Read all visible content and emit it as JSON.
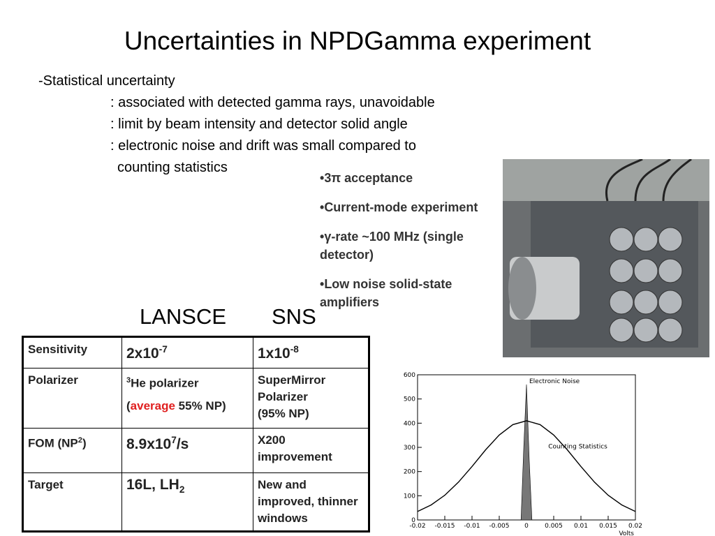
{
  "title": "Uncertainties in NPDGamma experiment",
  "statistical": {
    "heading": "-Statistical uncertainty",
    "items": [
      ": associated with detected gamma rays, unavoidable",
      ": limit by beam intensity and detector solid angle",
      ": electronic noise and drift was small compared to",
      "counting statistics"
    ]
  },
  "features": [
    "3π acceptance",
    "Current-mode experiment",
    "γ-rate ~100 MHz (single detector)",
    "Low noise solid-state amplifiers"
  ],
  "columns": [
    "LANSCE",
    "SNS"
  ],
  "table": {
    "rows": [
      [
        [
          [
            {
              "text": "Sensitivity"
            }
          ]
        ],
        [
          [
            {
              "text": "2x10"
            },
            {
              "text": "-7",
              "style": "sup"
            }
          ]
        ],
        [
          [
            {
              "text": "1x10"
            },
            {
              "text": "-8",
              "style": "sup"
            }
          ]
        ]
      ],
      [
        [
          [
            {
              "text": "Polarizer"
            }
          ]
        ],
        [
          [
            {
              "text": "3",
              "style": "sup"
            },
            {
              "text": "He polarizer"
            }
          ],
          [
            {
              "text": "("
            },
            {
              "text": "average",
              "style": "red"
            },
            {
              "text": " 55% NP)"
            }
          ]
        ],
        [
          [
            {
              "text": "SuperMirror"
            }
          ],
          [
            {
              "text": "Polarizer"
            }
          ],
          [
            {
              "text": "(95% NP)"
            }
          ]
        ]
      ],
      [
        [
          [
            {
              "text": "FOM (NP"
            },
            {
              "text": "2",
              "style": "sup"
            },
            {
              "text": ")"
            }
          ]
        ],
        [
          [
            {
              "text": "8.9x10"
            },
            {
              "text": "7",
              "style": "sup"
            },
            {
              "text": "/s"
            }
          ]
        ],
        [
          [
            {
              "text": "X200"
            }
          ],
          [
            {
              "text": "improvement"
            }
          ]
        ]
      ],
      [
        [
          [
            {
              "text": "Target"
            }
          ]
        ],
        [
          [
            {
              "text": "16L, LH"
            },
            {
              "text": "2",
              "style": "sub"
            }
          ]
        ],
        [
          [
            {
              "text": "New and"
            }
          ],
          [
            {
              "text": "improved, thinner"
            }
          ],
          [
            {
              "text": "windows"
            }
          ]
        ]
      ]
    ]
  },
  "plot": {
    "type": "line",
    "xlabel": "Volts",
    "xlim": [
      -0.02,
      0.02
    ],
    "ylim": [
      0,
      600
    ],
    "xticks": [
      -0.02,
      -0.015,
      -0.01,
      -0.005,
      0,
      0.005,
      0.01,
      0.015,
      0.02
    ],
    "yticks": [
      0,
      100,
      200,
      300,
      400,
      500,
      600
    ],
    "series": [
      {
        "name": "Electronic Noise",
        "color": "#777777",
        "fill": true,
        "x": [
          -0.001,
          -0.0005,
          0,
          0.0005,
          0.001
        ],
        "values": [
          0,
          300,
          560,
          250,
          0
        ]
      },
      {
        "name": "Counting Statistics",
        "color": "#000000",
        "fill": false,
        "x": [
          -0.02,
          -0.0175,
          -0.015,
          -0.0125,
          -0.01,
          -0.0075,
          -0.005,
          -0.0025,
          0,
          0.0025,
          0.005,
          0.0075,
          0.01,
          0.0125,
          0.015,
          0.0175,
          0.02
        ],
        "values": [
          35,
          62,
          102,
          156,
          221,
          290,
          351,
          394,
          410,
          394,
          351,
          290,
          221,
          156,
          102,
          62,
          35
        ]
      }
    ]
  }
}
